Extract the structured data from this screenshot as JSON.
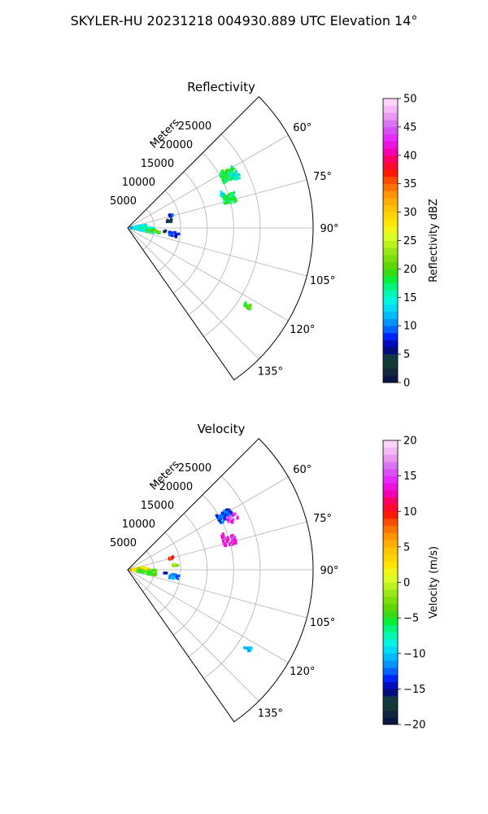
{
  "figure": {
    "title": "SKYLER-HU  20231218  004930.889 UTC Elevation 14°"
  },
  "chart_data": [
    {
      "type": "heatmap",
      "subtype": "polar-sector (PPI)",
      "title": "Reflectivity",
      "range_axis_label": "Meters",
      "range_ticks": [
        5000,
        10000,
        15000,
        20000,
        25000
      ],
      "range_tick_labels": [
        "5000",
        "10000",
        "15000",
        "20000",
        "25000"
      ],
      "range_lim": [
        0,
        35000
      ],
      "azimuth_lim_deg": [
        45,
        145
      ],
      "azimuth_ticks_deg": [
        60,
        75,
        90,
        105,
        120,
        135
      ],
      "azimuth_tick_labels": [
        "60°",
        "75°",
        "90°",
        "105°",
        "120°",
        "135°"
      ],
      "grid": true,
      "colorbar": {
        "label": "Reflectivity dBZ",
        "min": 0,
        "max": 50,
        "ticks": [
          0,
          5,
          10,
          15,
          20,
          25,
          30,
          35,
          40,
          45,
          50
        ],
        "tick_labels": [
          "0",
          "5",
          "10",
          "15",
          "20",
          "25",
          "30",
          "35",
          "40",
          "45",
          "50"
        ]
      },
      "echoes": [
        {
          "az": 62,
          "range": 21500,
          "value": 18,
          "spread_az": 3,
          "spread_r": 1500,
          "n": 90
        },
        {
          "az": 64,
          "range": 22500,
          "value": 14,
          "spread_az": 2,
          "spread_r": 1000,
          "n": 25
        },
        {
          "az": 74,
          "range": 20000,
          "value": 18,
          "spread_az": 2.5,
          "spread_r": 1200,
          "n": 45
        },
        {
          "az": 70,
          "range": 19000,
          "value": 14,
          "spread_az": 1,
          "spread_r": 400,
          "n": 8
        },
        {
          "az": 74,
          "range": 8500,
          "value": 8,
          "spread_az": 1.5,
          "spread_r": 400,
          "n": 10
        },
        {
          "az": 80,
          "range": 8000,
          "value": 5,
          "spread_az": 2,
          "spread_r": 500,
          "n": 12
        },
        {
          "az": 84,
          "range": 2600,
          "value": 14,
          "spread_az": 5,
          "spread_r": 900,
          "n": 45
        },
        {
          "az": 89,
          "range": 1500,
          "value": 13,
          "spread_az": 6,
          "spread_r": 900,
          "n": 35
        },
        {
          "az": 95,
          "range": 3200,
          "value": 15,
          "spread_az": 6,
          "spread_r": 1800,
          "n": 80
        },
        {
          "az": 97,
          "range": 4800,
          "value": 20,
          "spread_az": 3,
          "spread_r": 1400,
          "n": 25
        },
        {
          "az": 98,
          "range": 8800,
          "value": 8,
          "spread_az": 3,
          "spread_r": 1000,
          "n": 22
        },
        {
          "az": 95,
          "range": 7200,
          "value": 3,
          "spread_az": 1,
          "spread_r": 300,
          "n": 4
        },
        {
          "az": 123,
          "range": 27000,
          "value": 20,
          "spread_az": 1,
          "spread_r": 700,
          "n": 14
        }
      ]
    },
    {
      "type": "heatmap",
      "subtype": "polar-sector (PPI)",
      "title": "Velocity",
      "range_axis_label": "Meters",
      "range_ticks": [
        5000,
        10000,
        15000,
        20000,
        25000
      ],
      "range_tick_labels": [
        "5000",
        "10000",
        "15000",
        "20000",
        "25000"
      ],
      "range_lim": [
        0,
        35000
      ],
      "azimuth_lim_deg": [
        45,
        145
      ],
      "azimuth_ticks_deg": [
        60,
        75,
        90,
        105,
        120,
        135
      ],
      "azimuth_tick_labels": [
        "60°",
        "75°",
        "90°",
        "105°",
        "120°",
        "135°"
      ],
      "grid": true,
      "colorbar": {
        "label": "Velocity (m/s)",
        "min": -20,
        "max": 20,
        "ticks": [
          -20,
          -15,
          -10,
          -5,
          0,
          5,
          10,
          15,
          20
        ],
        "tick_labels": [
          "−20",
          "−15",
          "−10",
          "−5",
          "0",
          "5",
          "10",
          "15",
          "20"
        ]
      },
      "echoes": [
        {
          "az": 61,
          "range": 21000,
          "value": -13,
          "spread_az": 2.5,
          "spread_r": 1400,
          "n": 80
        },
        {
          "az": 64,
          "range": 22000,
          "value": 15,
          "spread_az": 2,
          "spread_r": 1100,
          "n": 25
        },
        {
          "az": 74,
          "range": 20000,
          "value": 14,
          "spread_az": 2.5,
          "spread_r": 1200,
          "n": 45
        },
        {
          "az": 70,
          "range": 19000,
          "value": 14,
          "spread_az": 1,
          "spread_r": 400,
          "n": 8
        },
        {
          "az": 75,
          "range": 8500,
          "value": 9,
          "spread_az": 1.5,
          "spread_r": 400,
          "n": 10
        },
        {
          "az": 84,
          "range": 2600,
          "value": 1,
          "spread_az": 5,
          "spread_r": 900,
          "n": 45
        },
        {
          "az": 84,
          "range": 9000,
          "value": -2,
          "spread_az": 1.5,
          "spread_r": 500,
          "n": 10
        },
        {
          "az": 89,
          "range": 1500,
          "value": 6,
          "spread_az": 6,
          "spread_r": 900,
          "n": 30
        },
        {
          "az": 92,
          "range": 2500,
          "value": 3,
          "spread_az": 4,
          "spread_r": 1500,
          "n": 50
        },
        {
          "az": 96,
          "range": 3600,
          "value": -4,
          "spread_az": 6,
          "spread_r": 1800,
          "n": 70
        },
        {
          "az": 98,
          "range": 8800,
          "value": -12,
          "spread_az": 3,
          "spread_r": 1000,
          "n": 22
        },
        {
          "az": 95,
          "range": 7200,
          "value": -16,
          "spread_az": 1,
          "spread_r": 300,
          "n": 4
        },
        {
          "az": 123,
          "range": 27000,
          "value": -10,
          "spread_az": 1,
          "spread_r": 700,
          "n": 14
        }
      ]
    }
  ]
}
